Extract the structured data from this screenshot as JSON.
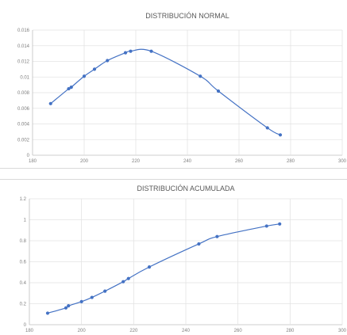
{
  "chart_data": [
    {
      "type": "line",
      "title": "DISTRIBUCIÓN NORMAL",
      "xlim": [
        180,
        300
      ],
      "ylim": [
        0,
        0.016
      ],
      "x_ticks": [
        "180",
        "200",
        "220",
        "240",
        "260",
        "280",
        "300"
      ],
      "y_ticks": [
        "0",
        "0.002",
        "0.004",
        "0.006",
        "0.008",
        "0.01",
        "0.012",
        "0.014",
        "0.016"
      ],
      "grid": true,
      "series": [
        {
          "color": "#4472c4",
          "x": [
            187,
            194,
            195,
            200,
            204,
            209,
            216,
            218,
            226,
            245,
            252,
            271,
            276
          ],
          "y": [
            0.0066,
            0.0085,
            0.0087,
            0.0101,
            0.011,
            0.0121,
            0.0131,
            0.0133,
            0.0133,
            0.0101,
            0.0082,
            0.0035,
            0.0026
          ]
        }
      ]
    },
    {
      "type": "line",
      "title": "DISTRIBUCIÓN ACUMULADA",
      "xlim": [
        180,
        300
      ],
      "ylim": [
        0,
        1.2
      ],
      "x_ticks": [
        "180",
        "200",
        "220",
        "240",
        "260",
        "280",
        "300"
      ],
      "y_ticks": [
        "0",
        "0.2",
        "0.4",
        "0.6",
        "0.8",
        "1",
        "1.2"
      ],
      "grid": true,
      "series": [
        {
          "color": "#4472c4",
          "x": [
            187,
            194,
            195,
            200,
            204,
            209,
            216,
            218,
            226,
            245,
            252,
            271,
            276
          ],
          "y": [
            0.11,
            0.16,
            0.18,
            0.22,
            0.26,
            0.32,
            0.41,
            0.44,
            0.55,
            0.77,
            0.84,
            0.94,
            0.96
          ]
        }
      ]
    }
  ]
}
